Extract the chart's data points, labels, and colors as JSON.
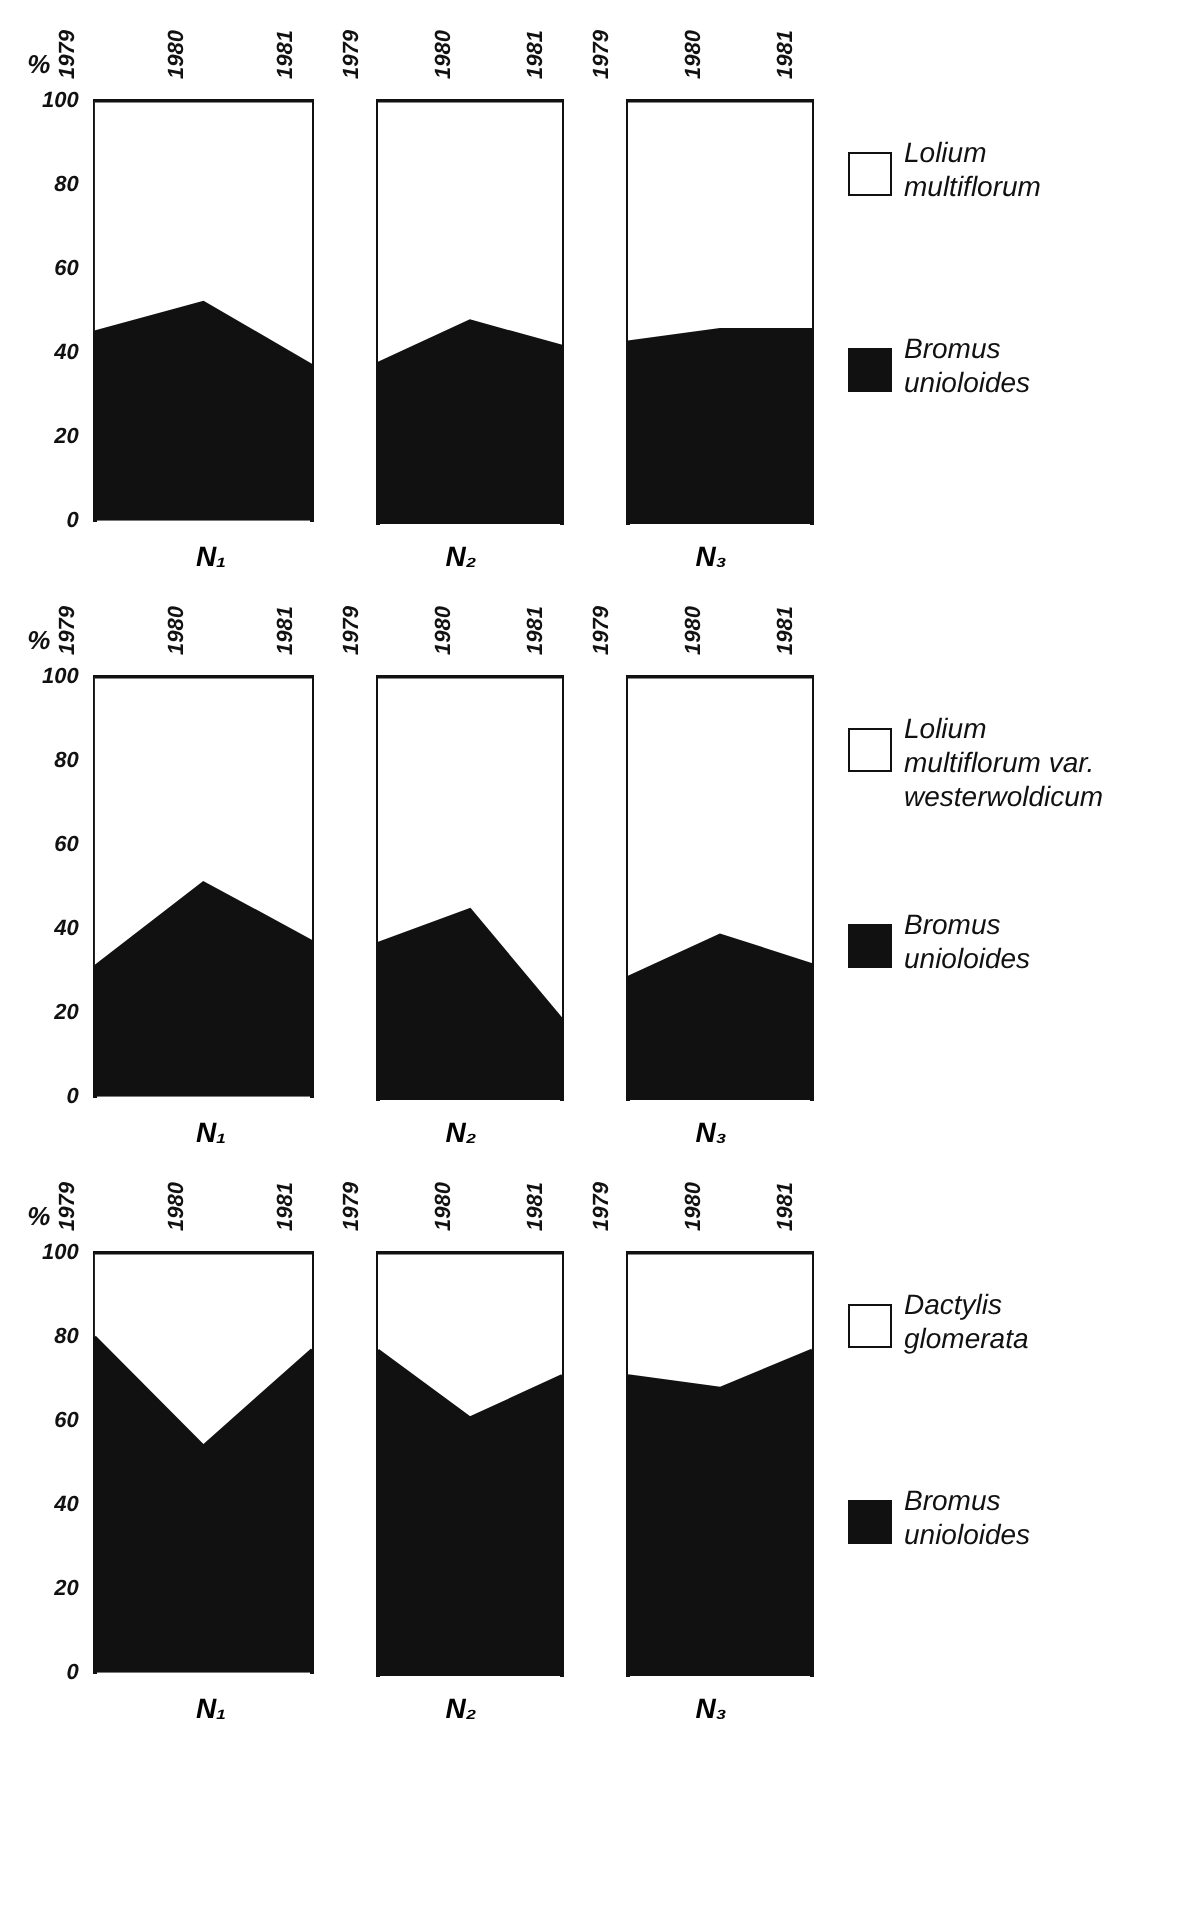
{
  "chart_data": [
    {
      "type": "area",
      "stacked": true,
      "categories": [
        "1979",
        "1980",
        "1981"
      ],
      "xlabel": "N₁",
      "ylabel": "%",
      "ylim": [
        0,
        100
      ],
      "yticks": [
        0,
        20,
        40,
        60,
        80,
        100
      ],
      "series": [
        {
          "color": "#111111",
          "values": [
            45,
            52,
            37
          ]
        },
        {
          "color": "#ffffff",
          "values": [
            55,
            48,
            63
          ]
        }
      ]
    },
    {
      "type": "area",
      "stacked": true,
      "categories": [
        "1979",
        "1980",
        "1981"
      ],
      "xlabel": "N₂",
      "ylim": [
        0,
        100
      ],
      "yticks": [
        0,
        20,
        40,
        60,
        80,
        100
      ],
      "tick_labels": "x",
      "series": [
        {
          "color": "#111111",
          "values": [
            38,
            48,
            42
          ]
        },
        {
          "color": "#ffffff",
          "values": [
            62,
            52,
            58
          ]
        }
      ]
    },
    {
      "type": "area",
      "stacked": true,
      "categories": [
        "1979",
        "1980",
        "1981"
      ],
      "xlabel": "N₃",
      "ylim": [
        0,
        100
      ],
      "yticks": [
        0,
        20,
        40,
        60,
        80,
        100
      ],
      "tick_labels": "x",
      "legend": "right",
      "series": [
        {
          "name": "Bromus unioloides",
          "color": "#111111",
          "values": [
            43,
            46,
            46
          ]
        },
        {
          "name": "Lolium multiflorum",
          "color": "#ffffff",
          "values": [
            57,
            54,
            54
          ]
        }
      ]
    },
    {
      "type": "area",
      "stacked": true,
      "categories": [
        "1979",
        "1980",
        "1981"
      ],
      "xlabel": "N₁",
      "ylabel": "%",
      "ylim": [
        0,
        100
      ],
      "yticks": [
        0,
        20,
        40,
        60,
        80,
        100
      ],
      "series": [
        {
          "color": "#111111",
          "values": [
            31,
            51,
            37
          ]
        },
        {
          "color": "#ffffff",
          "values": [
            69,
            49,
            63
          ]
        }
      ]
    },
    {
      "type": "area",
      "stacked": true,
      "categories": [
        "1979",
        "1980",
        "1981"
      ],
      "xlabel": "N₂",
      "ylim": [
        0,
        100
      ],
      "yticks": [
        0,
        20,
        40,
        60,
        80,
        100
      ],
      "tick_labels": "x",
      "series": [
        {
          "color": "#111111",
          "values": [
            37,
            45,
            19
          ]
        },
        {
          "color": "#ffffff",
          "values": [
            63,
            55,
            81
          ]
        }
      ]
    },
    {
      "type": "area",
      "stacked": true,
      "categories": [
        "1979",
        "1980",
        "1981"
      ],
      "xlabel": "N₃",
      "ylim": [
        0,
        100
      ],
      "yticks": [
        0,
        20,
        40,
        60,
        80,
        100
      ],
      "tick_labels": "x",
      "legend": "right",
      "series": [
        {
          "name": "Bromus unioloides",
          "color": "#111111",
          "values": [
            29,
            39,
            32
          ]
        },
        {
          "name": "Lolium multiflorum var. westerwoldicum",
          "color": "#ffffff",
          "values": [
            71,
            61,
            68
          ]
        }
      ]
    },
    {
      "type": "area",
      "stacked": true,
      "categories": [
        "1979",
        "1980",
        "1981"
      ],
      "xlabel": "N₁",
      "ylabel": "%",
      "ylim": [
        0,
        100
      ],
      "yticks": [
        0,
        20,
        40,
        60,
        80,
        100
      ],
      "series": [
        {
          "color": "#111111",
          "values": [
            80,
            54,
            77
          ]
        },
        {
          "color": "#ffffff",
          "values": [
            20,
            46,
            23
          ]
        }
      ]
    },
    {
      "type": "area",
      "stacked": true,
      "categories": [
        "1979",
        "1980",
        "1981"
      ],
      "xlabel": "N₂",
      "ylim": [
        0,
        100
      ],
      "yticks": [
        0,
        20,
        40,
        60,
        80,
        100
      ],
      "tick_labels": "x",
      "series": [
        {
          "color": "#111111",
          "values": [
            77,
            61,
            71
          ]
        },
        {
          "color": "#ffffff",
          "values": [
            23,
            39,
            29
          ]
        }
      ]
    },
    {
      "type": "area",
      "stacked": true,
      "categories": [
        "1979",
        "1980",
        "1981"
      ],
      "xlabel": "N₃",
      "ylim": [
        0,
        100
      ],
      "yticks": [
        0,
        20,
        40,
        60,
        80,
        100
      ],
      "tick_labels": "x",
      "legend": "right",
      "series": [
        {
          "name": "Bromus unioloides",
          "color": "#111111",
          "values": [
            71,
            68,
            77
          ]
        },
        {
          "name": "Dactylis glomerata",
          "color": "#ffffff",
          "values": [
            29,
            32,
            23
          ]
        }
      ]
    }
  ]
}
